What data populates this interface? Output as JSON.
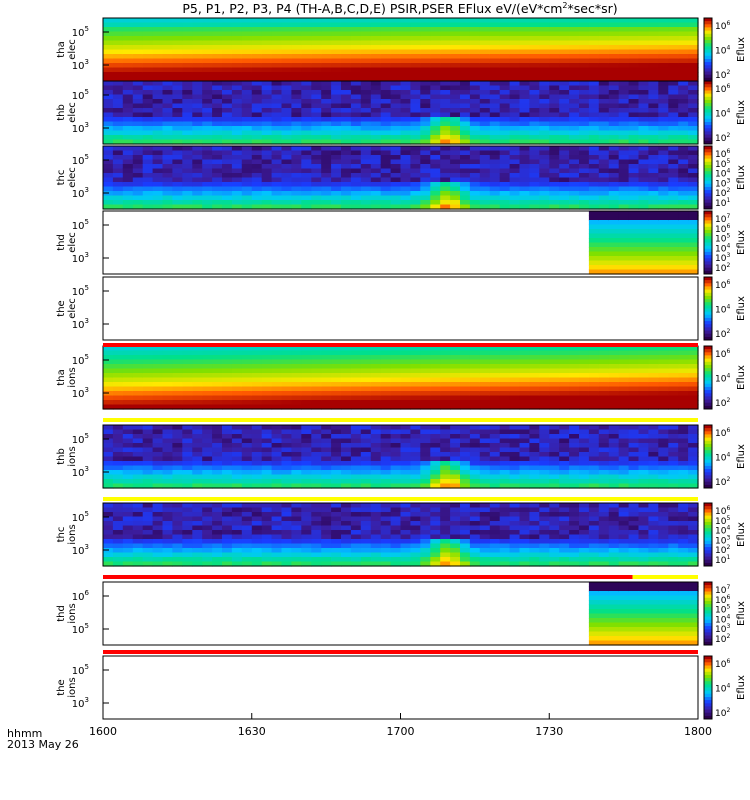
{
  "chart_data": {
    "type": "heatmap",
    "title": "P5, P1, P2, P3, P4 (TH-A,B,C,D,E) PSIR,PSER EFlux eV/(eV*cm",
    "title_sup": "2",
    "title_tail": "*sec*sr)",
    "xlabel_line1": "hhmm",
    "xlabel_line2": "2013 May 26",
    "x_ticks": [
      "1600",
      "1630",
      "1700",
      "1730",
      "1800"
    ],
    "x_range": [
      "16:00",
      "18:00"
    ],
    "colorbar_label": "Eflux",
    "panels": [
      {
        "id": "tha-elec",
        "label": [
          "tha",
          "elec"
        ],
        "y_ticks": [
          "10",
          "10"
        ],
        "y_exp": [
          "5",
          "3"
        ],
        "cbar": [
          [
            "10",
            "6"
          ],
          [
            "10",
            "4"
          ],
          [
            "10",
            "2"
          ]
        ],
        "pattern": "high",
        "flag": null
      },
      {
        "id": "thb-elec",
        "label": [
          "thb",
          "elec"
        ],
        "y_ticks": [
          "10",
          "10"
        ],
        "y_exp": [
          "5",
          "3"
        ],
        "cbar": [
          [
            "10",
            "6"
          ],
          [
            "10",
            "4"
          ],
          [
            "10",
            "2"
          ]
        ],
        "pattern": "low",
        "flag": null
      },
      {
        "id": "thc-elec",
        "label": [
          "thc",
          "elec"
        ],
        "y_ticks": [
          "10",
          "10"
        ],
        "y_exp": [
          "5",
          "3"
        ],
        "cbar": [
          [
            "10",
            "6"
          ],
          [
            "10",
            "5"
          ],
          [
            "10",
            "4"
          ],
          [
            "10",
            "3"
          ],
          [
            "10",
            "2"
          ],
          [
            "10",
            "1"
          ]
        ],
        "pattern": "low",
        "flag": null
      },
      {
        "id": "thd-elec",
        "label": [
          "thd",
          "elec"
        ],
        "y_ticks": [
          "10",
          "10"
        ],
        "y_exp": [
          "5",
          "3"
        ],
        "cbar": [
          [
            "10",
            "7"
          ],
          [
            "10",
            "6"
          ],
          [
            "10",
            "5"
          ],
          [
            "10",
            "4"
          ],
          [
            "10",
            "3"
          ],
          [
            "10",
            "2"
          ]
        ],
        "pattern": "late",
        "data_start": 0.83,
        "flag": null
      },
      {
        "id": "the-elec",
        "label": [
          "the",
          "elec"
        ],
        "y_ticks": [
          "10",
          "10"
        ],
        "y_exp": [
          "5",
          "3"
        ],
        "cbar": [
          [
            "10",
            "6"
          ],
          [
            "10",
            "4"
          ],
          [
            "10",
            "2"
          ]
        ],
        "pattern": "empty",
        "flag": {
          "color": "#ff0000",
          "until": 1.0
        }
      },
      {
        "id": "tha-ions",
        "label": [
          "tha",
          "ions"
        ],
        "y_ticks": [
          "10",
          "10"
        ],
        "y_exp": [
          "5",
          "3"
        ],
        "cbar": [
          [
            "10",
            "6"
          ],
          [
            "10",
            "4"
          ],
          [
            "10",
            "2"
          ]
        ],
        "pattern": "ionhigh",
        "flag": {
          "color": "#ffff00",
          "until": 1.0
        }
      },
      {
        "id": "thb-ions",
        "label": [
          "thb",
          "ions"
        ],
        "y_ticks": [
          "10",
          "10"
        ],
        "y_exp": [
          "5",
          "3"
        ],
        "cbar": [
          [
            "10",
            "6"
          ],
          [
            "10",
            "4"
          ],
          [
            "10",
            "2"
          ]
        ],
        "pattern": "low",
        "flag": {
          "color": "#ffff00",
          "until": 1.0
        }
      },
      {
        "id": "thc-ions",
        "label": [
          "thc",
          "ions"
        ],
        "y_ticks": [
          "10",
          "10"
        ],
        "y_exp": [
          "5",
          "3"
        ],
        "cbar": [
          [
            "10",
            "6"
          ],
          [
            "10",
            "5"
          ],
          [
            "10",
            "4"
          ],
          [
            "10",
            "3"
          ],
          [
            "10",
            "2"
          ],
          [
            "10",
            "1"
          ]
        ],
        "pattern": "low",
        "flag": {
          "color": "#ff0000",
          "until": 0.89,
          "rest": "#ffff00"
        }
      },
      {
        "id": "thd-ions",
        "label": [
          "thd",
          "ions"
        ],
        "y_ticks": [
          "10",
          "10"
        ],
        "y_exp": [
          "6",
          "5"
        ],
        "cbar": [
          [
            "10",
            "7"
          ],
          [
            "10",
            "6"
          ],
          [
            "10",
            "5"
          ],
          [
            "10",
            "4"
          ],
          [
            "10",
            "3"
          ],
          [
            "10",
            "2"
          ]
        ],
        "pattern": "late",
        "data_start": 0.83,
        "flag": {
          "color": "#ff0000",
          "until": 1.0
        }
      },
      {
        "id": "the-ions",
        "label": [
          "the",
          "ions"
        ],
        "y_ticks": [
          "10",
          "10"
        ],
        "y_exp": [
          "5",
          "3"
        ],
        "cbar": [
          [
            "10",
            "6"
          ],
          [
            "10",
            "4"
          ],
          [
            "10",
            "2"
          ]
        ],
        "pattern": "empty",
        "flag": null
      }
    ]
  }
}
